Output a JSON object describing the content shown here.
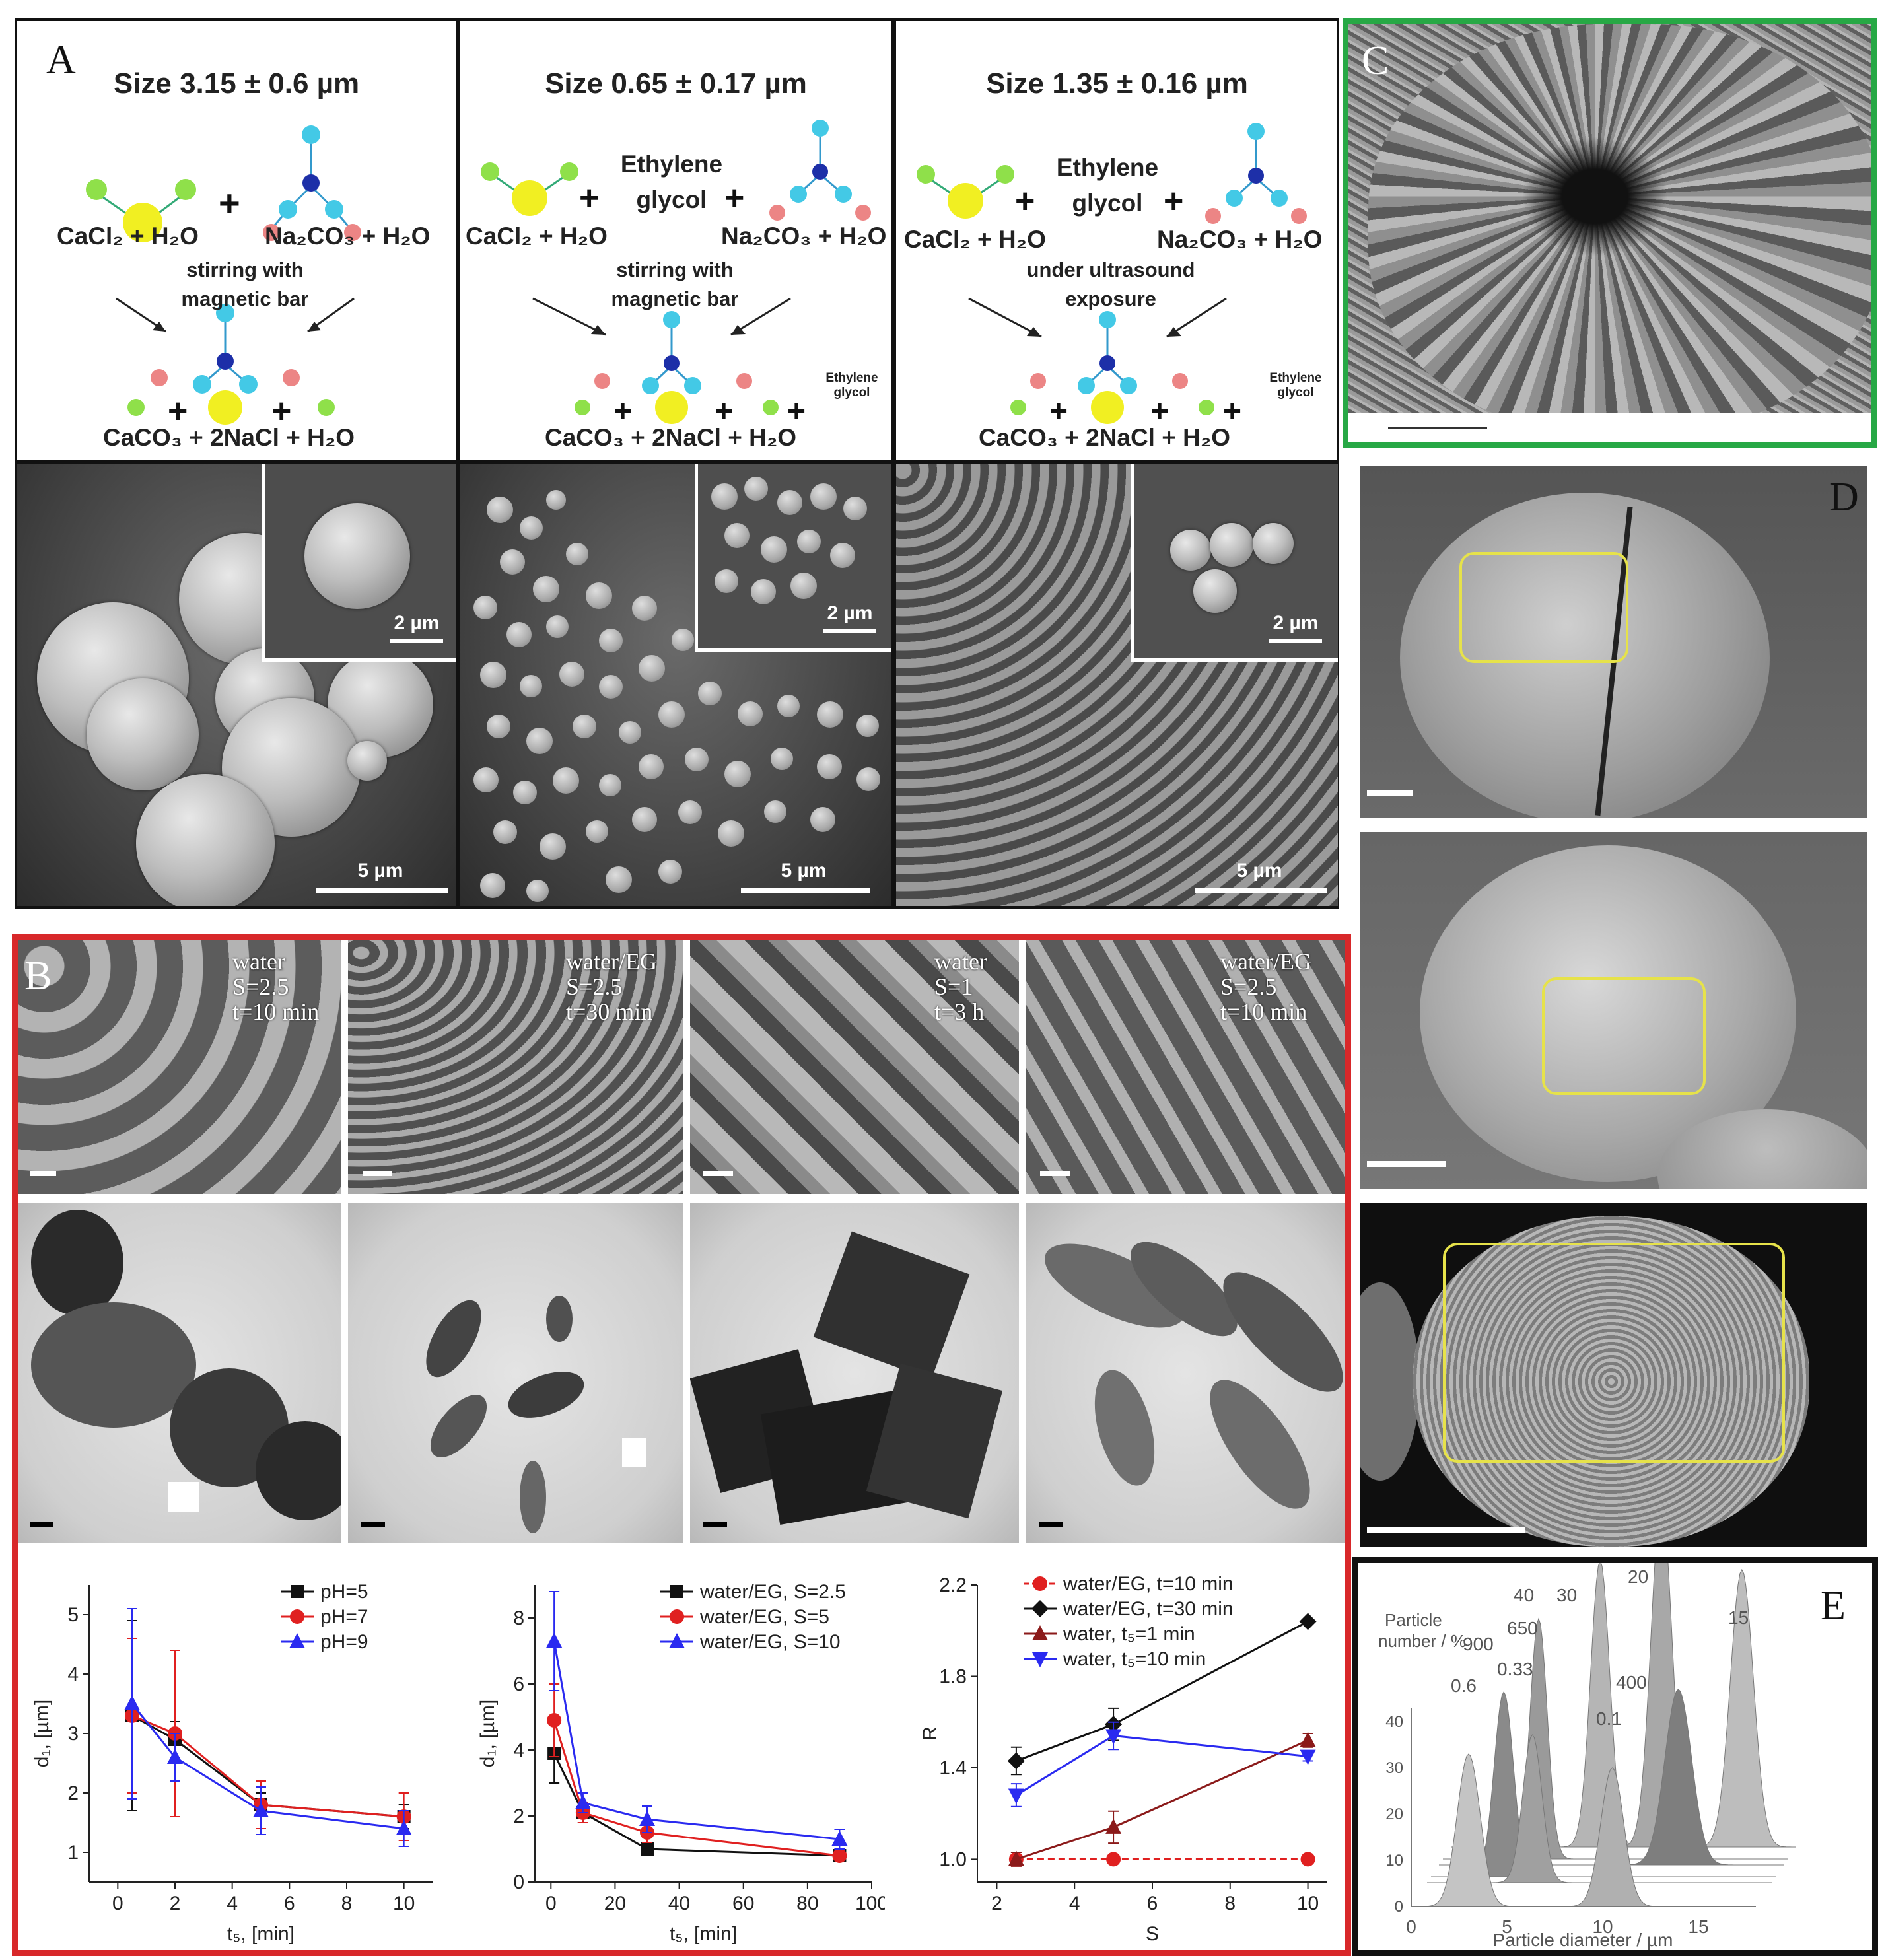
{
  "panelA": {
    "letter": "A",
    "columns": [
      {
        "size": "Size 3.15 ± 0.6 µm",
        "reactant_left": "CaCl₂ + H₂O",
        "reactant_right": "Na₂CO₃ + H₂O",
        "middle": "",
        "condition": "stirring with magnetic bar",
        "product": "CaCO₃ + 2NaCl + H₂O",
        "product_extra": "",
        "scale_main": "5 µm",
        "scale_inset": "2 µm"
      },
      {
        "size": "Size 0.65 ± 0.17 µm",
        "reactant_left": "CaCl₂ + H₂O",
        "reactant_right": "Na₂CO₃ + H₂O",
        "middle": "Ethylene glycol",
        "condition": "stirring with magnetic bar",
        "product": "CaCO₃ + 2NaCl + H₂O",
        "product_extra": "Ethylene glycol",
        "scale_main": "5 µm",
        "scale_inset": "2 µm"
      },
      {
        "size": "Size 1.35 ± 0.16 µm",
        "reactant_left": "CaCl₂ + H₂O",
        "reactant_right": "Na₂CO₃ + H₂O",
        "middle": "Ethylene glycol",
        "condition": "under ultrasound exposure",
        "product": "CaCO₃ + 2NaCl + H₂O",
        "product_extra": "Ethylene glycol",
        "scale_main": "5 µm",
        "scale_inset": "2 µm"
      }
    ],
    "atoms": {
      "cl": "Cl",
      "ca": "Ca",
      "na": "Na",
      "o": "O"
    }
  },
  "panelB": {
    "letter": "B",
    "sem_labels": [
      {
        "solvent": "water",
        "s": "S=2.5",
        "t": "t=10 min"
      },
      {
        "solvent": "water/EG",
        "s": "S=2.5",
        "t": "t=30 min"
      },
      {
        "solvent": "water",
        "s": "S=1",
        "t": "t=3 h"
      },
      {
        "solvent": "water/EG",
        "s": "S=2.5",
        "t": "t=10 min"
      }
    ]
  },
  "panelC": {
    "letter": "C"
  },
  "panelD": {
    "letter": "D"
  },
  "panelE": {
    "letter": "E"
  },
  "colors": {
    "black": "#111111",
    "red": "#e02020",
    "blue": "#2a2af0",
    "darkred": "#8b1a1a",
    "green_border": "#27a845",
    "red_border": "#d8282a"
  },
  "chart_data": [
    {
      "type": "line",
      "xlabel": "t₅, [min]",
      "ylabel": "d₁, [µm]",
      "xlim": [
        -1,
        11
      ],
      "ylim": [
        0.5,
        5.5
      ],
      "xticks": [
        0,
        2,
        4,
        6,
        8,
        10
      ],
      "yticks": [
        1,
        2,
        3,
        4,
        5
      ],
      "legend": "top-right",
      "series": [
        {
          "name": "pH=5",
          "color": "#111111",
          "marker": "square",
          "x": [
            0.5,
            2,
            5,
            10
          ],
          "y": [
            3.3,
            2.9,
            1.8,
            1.6
          ],
          "err": [
            1.6,
            0.3,
            0.2,
            0.2
          ]
        },
        {
          "name": "pH=7",
          "color": "#e02020",
          "marker": "circle",
          "x": [
            0.5,
            2,
            5,
            10
          ],
          "y": [
            3.3,
            3.0,
            1.8,
            1.6
          ],
          "err": [
            1.3,
            1.4,
            0.4,
            0.4
          ]
        },
        {
          "name": "pH=9",
          "color": "#2a2af0",
          "marker": "triangle",
          "x": [
            0.5,
            2,
            5,
            10
          ],
          "y": [
            3.5,
            2.6,
            1.7,
            1.4
          ],
          "err": [
            1.6,
            0.4,
            0.4,
            0.3
          ]
        }
      ]
    },
    {
      "type": "line",
      "xlabel": "t₅, [min]",
      "ylabel": "d₁, [µm]",
      "xlim": [
        -5,
        100
      ],
      "ylim": [
        0,
        9
      ],
      "xticks": [
        0,
        20,
        40,
        60,
        80,
        100
      ],
      "yticks": [
        0,
        2,
        4,
        6,
        8
      ],
      "legend": "top-right",
      "series": [
        {
          "name": "water/EG, S=2.5",
          "color": "#111111",
          "marker": "square",
          "x": [
            1,
            10,
            30,
            90
          ],
          "y": [
            3.9,
            2.1,
            1.0,
            0.8
          ],
          "err": [
            0.9,
            0.3,
            0.2,
            0.1
          ]
        },
        {
          "name": "water/EG, S=5",
          "color": "#e02020",
          "marker": "circle",
          "x": [
            1,
            10,
            30,
            90
          ],
          "y": [
            4.9,
            2.1,
            1.5,
            0.8
          ],
          "err": [
            1.1,
            0.3,
            0.3,
            0.1
          ]
        },
        {
          "name": "water/EG, S=10",
          "color": "#2a2af0",
          "marker": "triangle",
          "x": [
            1,
            10,
            30,
            90
          ],
          "y": [
            7.3,
            2.4,
            1.9,
            1.3
          ],
          "err": [
            1.5,
            0.3,
            0.4,
            0.3
          ]
        }
      ]
    },
    {
      "type": "line",
      "xlabel": "S",
      "ylabel": "R",
      "xlim": [
        1.5,
        10.5
      ],
      "ylim": [
        0.9,
        2.2
      ],
      "xticks": [
        2,
        4,
        6,
        8,
        10
      ],
      "ytick_labels": [
        "1.0",
        "1.4",
        "1.8",
        "2.2"
      ],
      "yticks": [
        1.0,
        1.4,
        1.8,
        2.2
      ],
      "legend": "top-left",
      "series": [
        {
          "name": "water/EG, t=10 min",
          "color": "#e02020",
          "marker": "circle",
          "dashed": true,
          "x": [
            2.5,
            5,
            10
          ],
          "y": [
            1.0,
            1.0,
            1.0
          ],
          "err": [
            0.03,
            0.02,
            0.02
          ]
        },
        {
          "name": "water/EG, t=30 min",
          "color": "#111111",
          "marker": "diamond",
          "x": [
            2.5,
            5,
            10
          ],
          "y": [
            1.43,
            1.59,
            2.04
          ],
          "err": [
            0.06,
            0.07,
            0.0
          ]
        },
        {
          "name": "water, t₅=1 min",
          "color": "#8b1a1a",
          "marker": "triangle",
          "x": [
            2.5,
            5,
            10
          ],
          "y": [
            1.0,
            1.14,
            1.52
          ],
          "err": [
            0.03,
            0.07,
            0.03
          ]
        },
        {
          "name": "water, t₅=10 min",
          "color": "#2a2af0",
          "marker": "triangle-down",
          "x": [
            2.5,
            5,
            10
          ],
          "y": [
            1.28,
            1.54,
            1.45
          ],
          "err": [
            0.05,
            0.06,
            0.02
          ]
        }
      ]
    },
    {
      "type": "area",
      "xlabel": "Particle diameter / µm",
      "ylabel": "Particle number / %",
      "xticks": [
        0,
        5,
        10,
        15
      ],
      "yticks": [
        0,
        10,
        20,
        30,
        40
      ],
      "peak_labels": [
        "20",
        "40",
        "30",
        "15",
        "650",
        "900",
        "0.33",
        "0.6",
        "400",
        "0.1"
      ]
    }
  ]
}
